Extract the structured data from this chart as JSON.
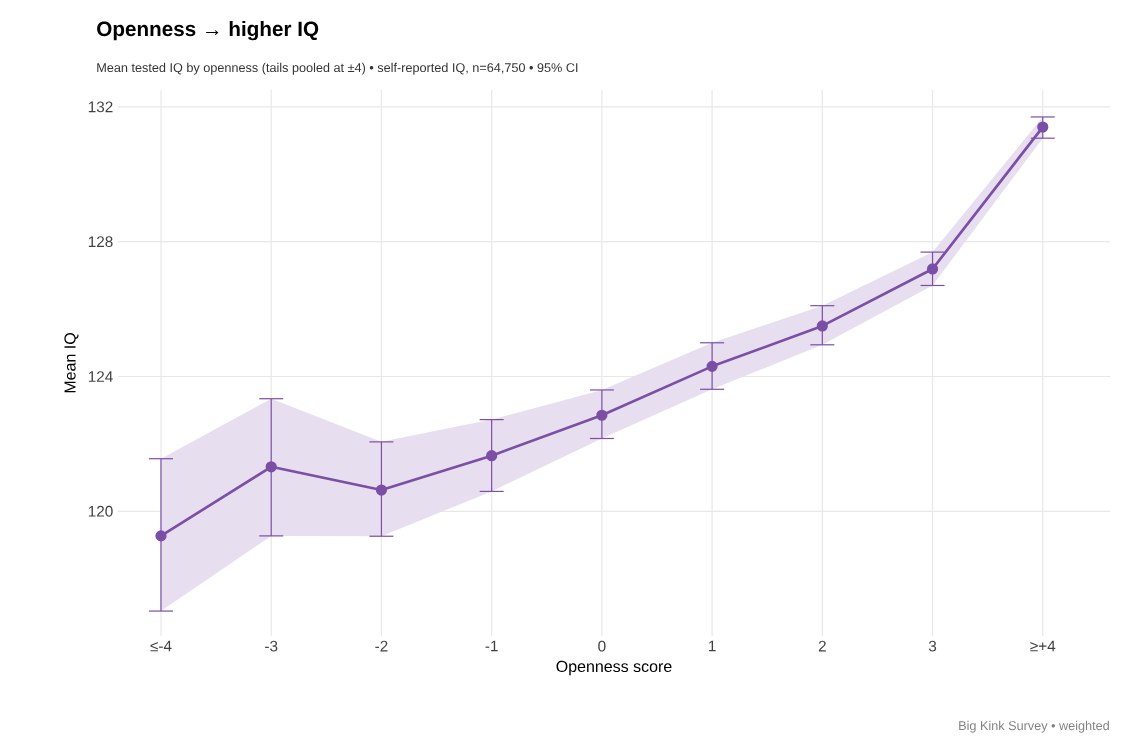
{
  "chart_data": {
    "type": "line",
    "title": "Openness → higher IQ",
    "subtitle": "Mean tested IQ by openness (tails pooled at ±4)  •  self-reported IQ, n=64,750  •  95% CI",
    "xlabel": "Openness score",
    "ylabel": "Mean IQ",
    "categories": [
      "≤-4",
      "-3",
      "-2",
      "-1",
      "0",
      "1",
      "2",
      "3",
      "≥+4"
    ],
    "series": [
      {
        "color": "#7b4fa6",
        "values": [
          119.27,
          121.32,
          120.63,
          121.65,
          122.85,
          124.3,
          125.5,
          127.19,
          131.4
        ],
        "errors": [
          [
            117.04,
            121.56
          ],
          [
            119.27,
            123.34
          ],
          [
            119.26,
            122.06
          ],
          [
            120.59,
            122.72
          ],
          [
            122.16,
            123.6
          ],
          [
            123.62,
            125.0
          ],
          [
            124.94,
            126.1
          ],
          [
            126.7,
            127.69
          ],
          [
            131.07,
            131.7
          ]
        ],
        "lower": [
          117.04,
          119.27,
          119.26,
          120.59,
          122.16,
          123.62,
          124.94,
          126.7,
          131.07
        ],
        "upper": [
          121.56,
          123.34,
          122.06,
          122.72,
          123.6,
          125.0,
          126.1,
          127.69,
          131.7
        ]
      }
    ],
    "ylim": [
      116.3,
      132.5
    ],
    "yticks": [
      120,
      124,
      128,
      132
    ],
    "grid": true,
    "marker": "circle",
    "line_style": "solid",
    "annotations": [
      "Big Kink Survey  •  weighted"
    ]
  }
}
